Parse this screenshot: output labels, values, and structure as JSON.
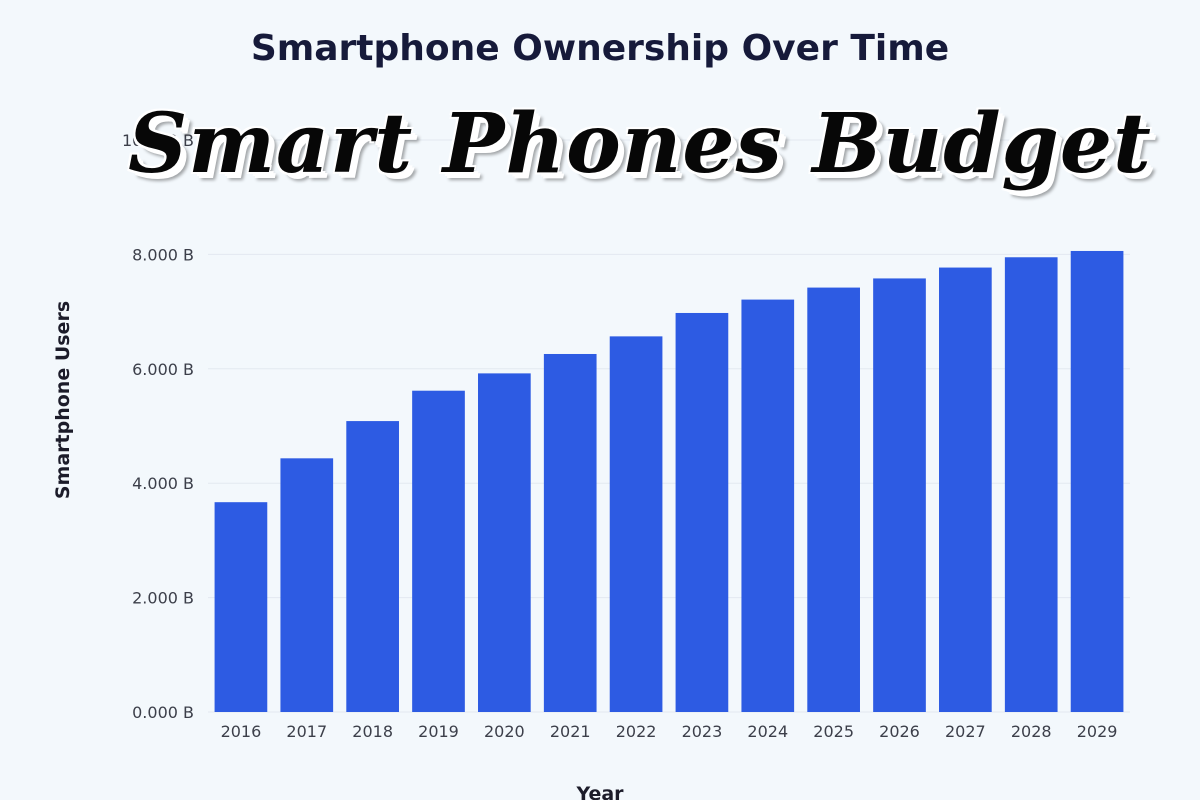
{
  "overlay": {
    "headline": "Smart Phones Budget"
  },
  "chart_data": {
    "type": "bar",
    "title": "Smartphone Ownership Over Time",
    "xlabel": "Year",
    "ylabel": "Smartphone Users",
    "categories": [
      "2016",
      "2017",
      "2018",
      "2019",
      "2020",
      "2021",
      "2022",
      "2023",
      "2024",
      "2025",
      "2026",
      "2027",
      "2028",
      "2029"
    ],
    "values": [
      3.668,
      4.435,
      5.086,
      5.617,
      5.92,
      6.259,
      6.567,
      6.976,
      7.21,
      7.42,
      7.58,
      7.77,
      7.95,
      8.06
    ],
    "unit": "B",
    "ylim": [
      0,
      10
    ],
    "yticks": [
      "0.000 B",
      "2.000 B",
      "4.000 B",
      "6.000 B",
      "8.000 B",
      "10.000 B"
    ],
    "grid": true,
    "bar_color": "#2d5be3",
    "background_color": "#f3f8fc"
  }
}
